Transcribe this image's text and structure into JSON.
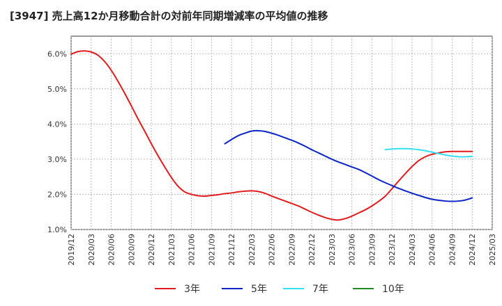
{
  "chart_data": {
    "type": "line",
    "title": "[3947]  売上高12か月移動合計の対前年同期増減率の平均値の推移",
    "xlabel": "",
    "ylabel": "",
    "ylim": [
      1.0,
      6.5
    ],
    "y_ticks": [
      "1.0%",
      "2.0%",
      "3.0%",
      "4.0%",
      "5.0%",
      "6.0%"
    ],
    "x_ticks": [
      "2019/12",
      "2020/03",
      "2020/06",
      "2020/09",
      "2020/12",
      "2021/03",
      "2021/06",
      "2021/09",
      "2021/12",
      "2022/03",
      "2022/06",
      "2022/09",
      "2022/12",
      "2023/03",
      "2023/06",
      "2023/09",
      "2023/12",
      "2024/03",
      "2024/06",
      "2024/09",
      "2024/12",
      "2025/03"
    ],
    "grid": true,
    "legend_position": "bottom",
    "series": [
      {
        "name": "3年",
        "color": "#e31a1c",
        "x": [
          "2019/12",
          "2020/01",
          "2020/02",
          "2020/03",
          "2020/04",
          "2020/05",
          "2020/06",
          "2020/07",
          "2020/08",
          "2020/09",
          "2020/10",
          "2020/11",
          "2020/12",
          "2021/01",
          "2021/02",
          "2021/03",
          "2021/04",
          "2021/05",
          "2021/06",
          "2021/07",
          "2021/08",
          "2021/09",
          "2021/10",
          "2021/11",
          "2021/12",
          "2022/01",
          "2022/02",
          "2022/03",
          "2022/04",
          "2022/05",
          "2022/06",
          "2022/07",
          "2022/08",
          "2022/09",
          "2022/10",
          "2022/11",
          "2022/12",
          "2023/01",
          "2023/02",
          "2023/03",
          "2023/04",
          "2023/05",
          "2023/06",
          "2023/07",
          "2023/08",
          "2023/09",
          "2023/10",
          "2023/11",
          "2023/12",
          "2024/01",
          "2024/02",
          "2024/03",
          "2024/04",
          "2024/05",
          "2024/06",
          "2024/07",
          "2024/08",
          "2024/09",
          "2024/10",
          "2024/11",
          "2024/12"
        ],
        "values": [
          5.99,
          6.06,
          6.08,
          6.05,
          5.96,
          5.78,
          5.53,
          5.22,
          4.88,
          4.52,
          4.15,
          3.8,
          3.44,
          3.1,
          2.78,
          2.48,
          2.23,
          2.07,
          2.0,
          1.96,
          1.95,
          1.97,
          1.99,
          2.02,
          2.04,
          2.07,
          2.09,
          2.1,
          2.08,
          2.03,
          1.95,
          1.88,
          1.81,
          1.74,
          1.67,
          1.58,
          1.49,
          1.41,
          1.34,
          1.29,
          1.27,
          1.31,
          1.38,
          1.47,
          1.56,
          1.67,
          1.8,
          1.95,
          2.16,
          2.38,
          2.59,
          2.79,
          2.96,
          3.07,
          3.14,
          3.18,
          3.21,
          3.22,
          3.22,
          3.22,
          3.22
        ]
      },
      {
        "name": "5年",
        "color": "#0b24c8",
        "x": [
          "2021/11",
          "2021/12",
          "2022/01",
          "2022/02",
          "2022/03",
          "2022/04",
          "2022/05",
          "2022/06",
          "2022/07",
          "2022/08",
          "2022/09",
          "2022/10",
          "2022/11",
          "2022/12",
          "2023/01",
          "2023/02",
          "2023/03",
          "2023/04",
          "2023/05",
          "2023/06",
          "2023/07",
          "2023/08",
          "2023/09",
          "2023/10",
          "2023/11",
          "2023/12",
          "2024/01",
          "2024/02",
          "2024/03",
          "2024/04",
          "2024/05",
          "2024/06",
          "2024/07",
          "2024/08",
          "2024/09",
          "2024/10",
          "2024/11",
          "2024/12"
        ],
        "values": [
          3.44,
          3.56,
          3.67,
          3.74,
          3.8,
          3.81,
          3.79,
          3.74,
          3.68,
          3.61,
          3.54,
          3.46,
          3.37,
          3.27,
          3.18,
          3.09,
          3.0,
          2.92,
          2.85,
          2.78,
          2.71,
          2.62,
          2.52,
          2.42,
          2.33,
          2.25,
          2.17,
          2.1,
          2.03,
          1.97,
          1.91,
          1.86,
          1.83,
          1.81,
          1.8,
          1.81,
          1.84,
          1.9
        ]
      },
      {
        "name": "7年",
        "color": "#33e0f0",
        "x": [
          "2023/11",
          "2023/12",
          "2024/01",
          "2024/02",
          "2024/03",
          "2024/04",
          "2024/05",
          "2024/06",
          "2024/07",
          "2024/08",
          "2024/09",
          "2024/10",
          "2024/11",
          "2024/12"
        ],
        "values": [
          3.27,
          3.29,
          3.3,
          3.3,
          3.29,
          3.27,
          3.24,
          3.2,
          3.16,
          3.12,
          3.09,
          3.07,
          3.07,
          3.08
        ]
      },
      {
        "name": "10年",
        "color": "#228b22",
        "x": [],
        "values": []
      }
    ]
  }
}
